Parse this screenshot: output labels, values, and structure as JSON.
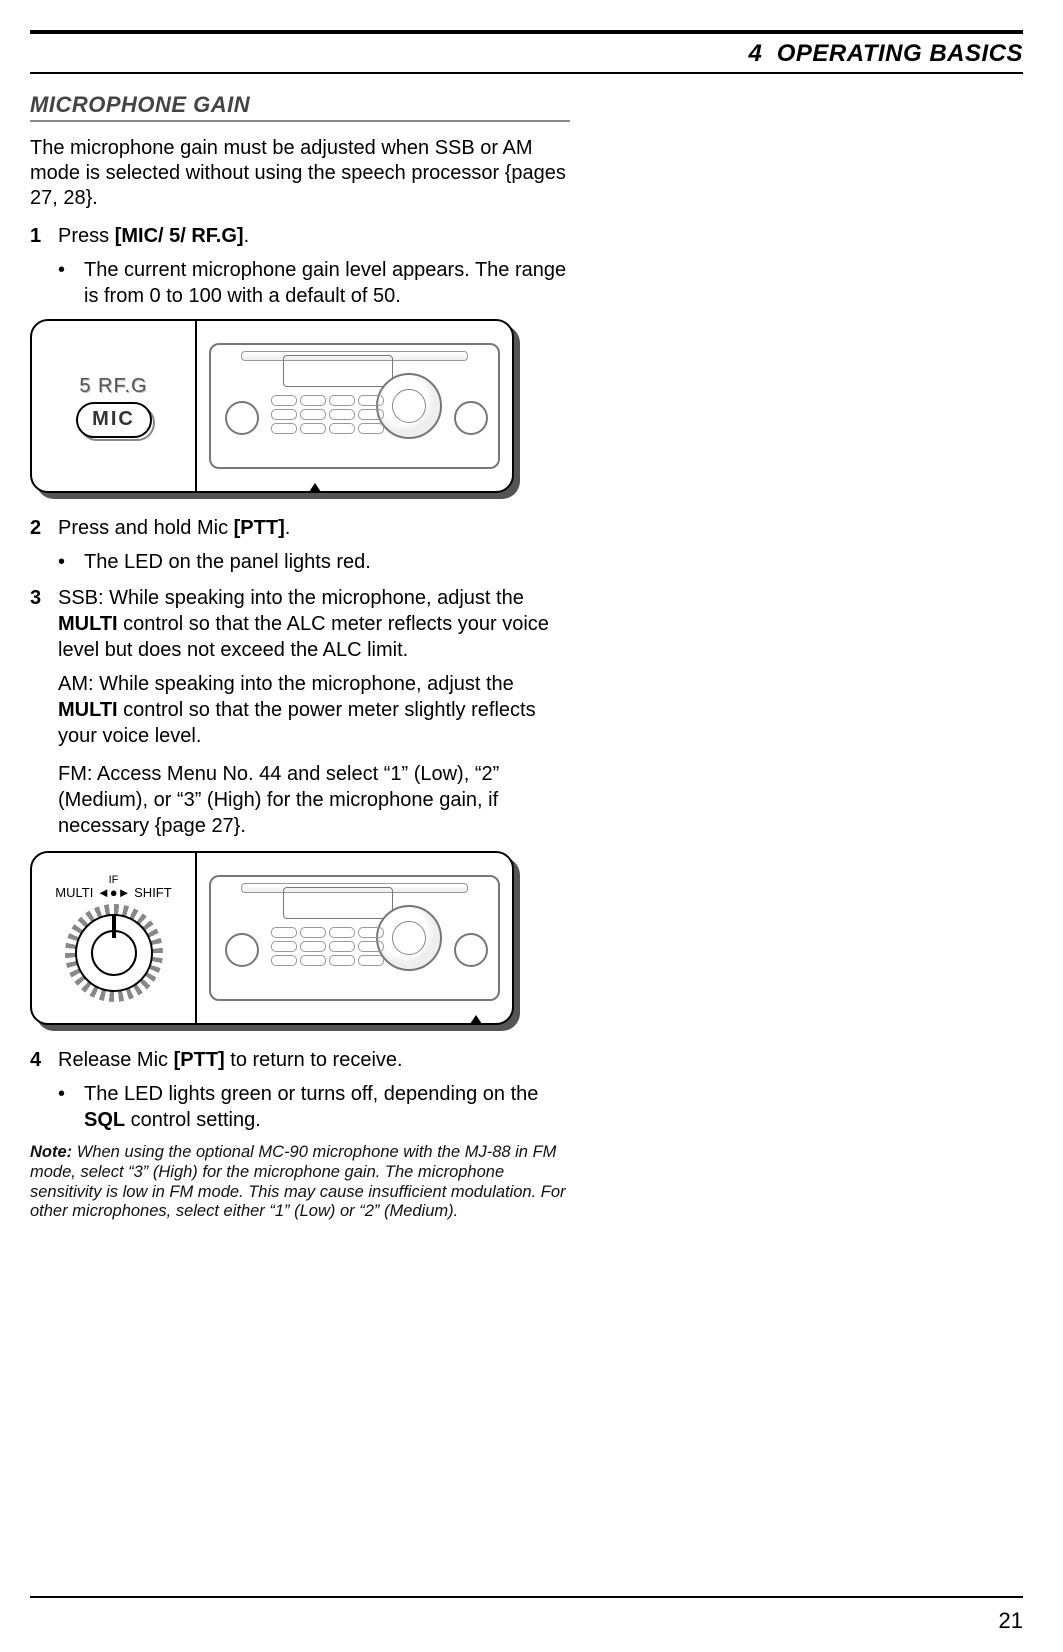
{
  "chapter": {
    "number": "4",
    "title": "OPERATING BASICS"
  },
  "section_title": "MICROPHONE GAIN",
  "intro": "The microphone gain must be adjusted when SSB or AM mode is selected without using the speech processor {pages 27, 28}.",
  "steps": {
    "s1": {
      "num": "1",
      "text_before": "Press ",
      "bold": "[MIC/ 5/ RF.G]",
      "text_after": ".",
      "bullet": "The current microphone gain level appears. The range is from 0 to 100 with a default of 50."
    },
    "s2": {
      "num": "2",
      "text_before": "Press and hold Mic ",
      "bold": "[PTT]",
      "text_after": ".",
      "bullet": "The LED on the panel lights red."
    },
    "s3": {
      "num": "3",
      "ssb_a": "SSB:  While speaking into the microphone, adjust the ",
      "ssb_bold": "MULTI",
      "ssb_b": " control so that the ALC meter reflects your voice level but does not exceed the ALC limit.",
      "am_a": "AM:  While speaking into the microphone, adjust the ",
      "am_bold": "MULTI",
      "am_b": " control so that the power meter slightly reflects your voice level.",
      "fm": "FM:  Access Menu No. 44 and select “1” (Low), “2” (Medium), or “3” (High) for the microphone gain, if necessary {page 27}."
    },
    "s4": {
      "num": "4",
      "text_before": "Release Mic ",
      "bold": "[PTT]",
      "text_after": " to return to receive.",
      "bullet_a": "The LED lights green or turns off, depending on the ",
      "bullet_bold": "SQL",
      "bullet_b": " control setting."
    }
  },
  "figure1": {
    "label_top": "5 RF.G",
    "label_pill": "MIC"
  },
  "figure2": {
    "label_top_right": "IF",
    "label_left": "MULTI",
    "label_right": "SHIFT"
  },
  "note": {
    "label": "Note:",
    "body": "  When using the optional MC-90 microphone with the MJ-88  in FM mode, select “3” (High) for the microphone gain.  The microphone sensitivity is low in FM mode.  This may cause insufficient modulation.  For other microphones, select either “1” (Low) or “2” (Medium)."
  },
  "page_number": "21",
  "colors": {
    "section_title": "#444444",
    "rule": "#000000",
    "figure_shadow": "#555555",
    "radio_line": "#777777"
  }
}
